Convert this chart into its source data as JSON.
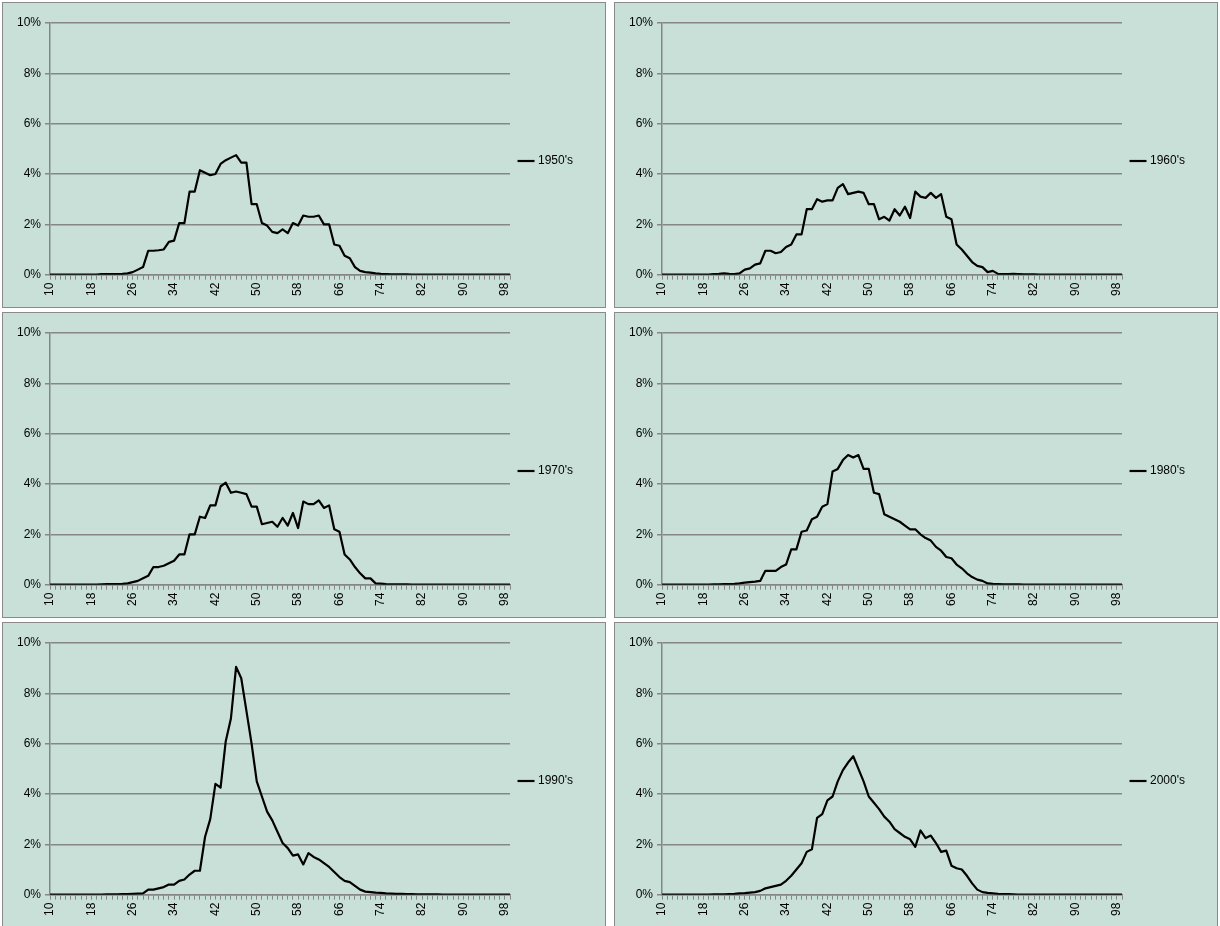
{
  "chart_data": [
    {
      "type": "line",
      "categories": [
        "10",
        null,
        null,
        null,
        null,
        null,
        null,
        null,
        "18",
        null,
        null,
        null,
        null,
        null,
        null,
        null,
        "26",
        null,
        null,
        null,
        null,
        null,
        null,
        null,
        "34",
        null,
        null,
        null,
        null,
        null,
        null,
        null,
        "42",
        null,
        null,
        null,
        null,
        null,
        null,
        null,
        "50",
        null,
        null,
        null,
        null,
        null,
        null,
        null,
        "58",
        null,
        null,
        null,
        null,
        null,
        null,
        null,
        "66",
        null,
        null,
        null,
        null,
        null,
        null,
        null,
        "74",
        null,
        null,
        null,
        null,
        null,
        null,
        null,
        "82",
        null,
        null,
        null,
        null,
        null,
        null,
        null,
        "90",
        null,
        null,
        null,
        null,
        null,
        null,
        null,
        "98",
        null
      ],
      "ylim": [
        0,
        10
      ],
      "yticks": [
        {
          "value": 0,
          "label": "0%"
        },
        {
          "value": 2,
          "label": "2%"
        },
        {
          "value": 4,
          "label": "4%"
        },
        {
          "value": 6,
          "label": "6%"
        },
        {
          "value": 8,
          "label": "8%"
        },
        {
          "value": 10,
          "label": "10%"
        }
      ],
      "grid": "y",
      "legend": "right",
      "marker": "none",
      "series": [
        {
          "name": "1950's",
          "color": "#000000",
          "values": [
            0,
            0,
            0,
            0,
            0,
            0,
            0,
            0,
            0,
            0,
            0.02,
            0.02,
            0.02,
            0.02,
            0.03,
            0.05,
            0.1,
            0.2,
            0.3,
            0.95,
            0.95,
            0.97,
            1.0,
            1.3,
            1.35,
            2.05,
            2.05,
            3.3,
            3.3,
            4.15,
            4.05,
            3.95,
            4.0,
            4.4,
            4.55,
            4.65,
            4.75,
            4.45,
            4.45,
            2.8,
            2.8,
            2.05,
            1.95,
            1.7,
            1.65,
            1.8,
            1.65,
            2.05,
            1.95,
            2.35,
            2.3,
            2.3,
            2.35,
            2.0,
            2.0,
            1.2,
            1.15,
            0.75,
            0.65,
            0.3,
            0.15,
            0.1,
            0.08,
            0.05,
            0.03,
            0.02,
            0.01,
            0.01,
            0.01,
            0.01,
            0,
            0,
            0,
            0,
            0,
            0,
            0,
            0,
            0,
            0,
            0,
            0,
            0,
            0,
            0,
            0,
            0,
            0,
            0,
            0
          ]
        }
      ]
    },
    {
      "type": "line",
      "categories": [
        "10",
        null,
        null,
        null,
        null,
        null,
        null,
        null,
        "18",
        null,
        null,
        null,
        null,
        null,
        null,
        null,
        "26",
        null,
        null,
        null,
        null,
        null,
        null,
        null,
        "34",
        null,
        null,
        null,
        null,
        null,
        null,
        null,
        "42",
        null,
        null,
        null,
        null,
        null,
        null,
        null,
        "50",
        null,
        null,
        null,
        null,
        null,
        null,
        null,
        "58",
        null,
        null,
        null,
        null,
        null,
        null,
        null,
        "66",
        null,
        null,
        null,
        null,
        null,
        null,
        null,
        "74",
        null,
        null,
        null,
        null,
        null,
        null,
        null,
        "82",
        null,
        null,
        null,
        null,
        null,
        null,
        null,
        "90",
        null,
        null,
        null,
        null,
        null,
        null,
        null,
        "98",
        null
      ],
      "ylim": [
        0,
        10
      ],
      "yticks": [
        {
          "value": 0,
          "label": "0%"
        },
        {
          "value": 2,
          "label": "2%"
        },
        {
          "value": 4,
          "label": "4%"
        },
        {
          "value": 6,
          "label": "6%"
        },
        {
          "value": 8,
          "label": "8%"
        },
        {
          "value": 10,
          "label": "10%"
        }
      ],
      "grid": "y",
      "legend": "right",
      "marker": "none",
      "series": [
        {
          "name": "1960's",
          "color": "#000000",
          "values": [
            0,
            0,
            0,
            0,
            0,
            0,
            0,
            0,
            0,
            0,
            0.02,
            0.03,
            0.05,
            0.03,
            0.02,
            0.05,
            0.2,
            0.25,
            0.4,
            0.45,
            0.95,
            0.95,
            0.85,
            0.9,
            1.1,
            1.2,
            1.6,
            1.6,
            2.6,
            2.6,
            3.0,
            2.9,
            2.95,
            2.95,
            3.45,
            3.6,
            3.2,
            3.25,
            3.3,
            3.25,
            2.8,
            2.8,
            2.2,
            2.3,
            2.15,
            2.6,
            2.35,
            2.7,
            2.25,
            3.3,
            3.1,
            3.05,
            3.25,
            3.05,
            3.2,
            2.3,
            2.2,
            1.2,
            1.0,
            0.75,
            0.5,
            0.35,
            0.3,
            0.1,
            0.15,
            0.03,
            0.02,
            0.02,
            0.03,
            0.02,
            0.01,
            0.01,
            0.01,
            0,
            0,
            0,
            0,
            0,
            0,
            0,
            0,
            0,
            0,
            0,
            0,
            0,
            0,
            0,
            0,
            0
          ]
        }
      ]
    },
    {
      "type": "line",
      "categories": [
        "10",
        null,
        null,
        null,
        null,
        null,
        null,
        null,
        "18",
        null,
        null,
        null,
        null,
        null,
        null,
        null,
        "26",
        null,
        null,
        null,
        null,
        null,
        null,
        null,
        "34",
        null,
        null,
        null,
        null,
        null,
        null,
        null,
        "42",
        null,
        null,
        null,
        null,
        null,
        null,
        null,
        "50",
        null,
        null,
        null,
        null,
        null,
        null,
        null,
        "58",
        null,
        null,
        null,
        null,
        null,
        null,
        null,
        "66",
        null,
        null,
        null,
        null,
        null,
        null,
        null,
        "74",
        null,
        null,
        null,
        null,
        null,
        null,
        null,
        "82",
        null,
        null,
        null,
        null,
        null,
        null,
        null,
        "90",
        null,
        null,
        null,
        null,
        null,
        null,
        null,
        "98",
        null
      ],
      "ylim": [
        0,
        10
      ],
      "yticks": [
        {
          "value": 0,
          "label": "0%"
        },
        {
          "value": 2,
          "label": "2%"
        },
        {
          "value": 4,
          "label": "4%"
        },
        {
          "value": 6,
          "label": "6%"
        },
        {
          "value": 8,
          "label": "8%"
        },
        {
          "value": 10,
          "label": "10%"
        }
      ],
      "grid": "y",
      "legend": "right",
      "marker": "none",
      "series": [
        {
          "name": "1970's",
          "color": "#000000",
          "values": [
            0,
            0,
            0,
            0,
            0,
            0,
            0,
            0,
            0,
            0,
            0.01,
            0.02,
            0.02,
            0.02,
            0.03,
            0.05,
            0.1,
            0.15,
            0.25,
            0.35,
            0.7,
            0.7,
            0.75,
            0.85,
            0.95,
            1.2,
            1.2,
            2.0,
            2.0,
            2.7,
            2.65,
            3.15,
            3.15,
            3.9,
            4.05,
            3.65,
            3.7,
            3.65,
            3.6,
            3.1,
            3.1,
            2.4,
            2.45,
            2.5,
            2.3,
            2.65,
            2.35,
            2.85,
            2.25,
            3.3,
            3.2,
            3.2,
            3.35,
            3.05,
            3.15,
            2.2,
            2.1,
            1.2,
            1.0,
            0.7,
            0.45,
            0.25,
            0.25,
            0.05,
            0.04,
            0.02,
            0.01,
            0.01,
            0.01,
            0.01,
            0,
            0,
            0,
            0,
            0,
            0,
            0,
            0,
            0,
            0,
            0,
            0,
            0,
            0,
            0,
            0,
            0,
            0,
            0,
            0
          ]
        }
      ]
    },
    {
      "type": "line",
      "categories": [
        "10",
        null,
        null,
        null,
        null,
        null,
        null,
        null,
        "18",
        null,
        null,
        null,
        null,
        null,
        null,
        null,
        "26",
        null,
        null,
        null,
        null,
        null,
        null,
        null,
        "34",
        null,
        null,
        null,
        null,
        null,
        null,
        null,
        "42",
        null,
        null,
        null,
        null,
        null,
        null,
        null,
        "50",
        null,
        null,
        null,
        null,
        null,
        null,
        null,
        "58",
        null,
        null,
        null,
        null,
        null,
        null,
        null,
        "66",
        null,
        null,
        null,
        null,
        null,
        null,
        null,
        "74",
        null,
        null,
        null,
        null,
        null,
        null,
        null,
        "82",
        null,
        null,
        null,
        null,
        null,
        null,
        null,
        "90",
        null,
        null,
        null,
        null,
        null,
        null,
        null,
        "98",
        null
      ],
      "ylim": [
        0,
        10
      ],
      "yticks": [
        {
          "value": 0,
          "label": "0%"
        },
        {
          "value": 2,
          "label": "2%"
        },
        {
          "value": 4,
          "label": "4%"
        },
        {
          "value": 6,
          "label": "6%"
        },
        {
          "value": 8,
          "label": "8%"
        },
        {
          "value": 10,
          "label": "10%"
        }
      ],
      "grid": "y",
      "legend": "right",
      "marker": "none",
      "series": [
        {
          "name": "1980's",
          "color": "#000000",
          "values": [
            0,
            0,
            0,
            0,
            0,
            0,
            0,
            0,
            0,
            0,
            0.01,
            0.01,
            0.02,
            0.02,
            0.03,
            0.05,
            0.08,
            0.1,
            0.12,
            0.15,
            0.55,
            0.55,
            0.55,
            0.7,
            0.8,
            1.4,
            1.4,
            2.1,
            2.15,
            2.6,
            2.7,
            3.1,
            3.2,
            4.5,
            4.6,
            4.95,
            5.15,
            5.05,
            5.15,
            4.6,
            4.6,
            3.65,
            3.6,
            2.8,
            2.7,
            2.6,
            2.5,
            2.35,
            2.2,
            2.2,
            2.0,
            1.85,
            1.75,
            1.5,
            1.35,
            1.1,
            1.05,
            0.8,
            0.65,
            0.45,
            0.3,
            0.2,
            0.15,
            0.05,
            0.03,
            0.02,
            0.01,
            0.01,
            0.01,
            0.01,
            0,
            0,
            0,
            0,
            0,
            0,
            0,
            0,
            0,
            0,
            0,
            0,
            0,
            0,
            0,
            0,
            0,
            0,
            0,
            0
          ]
        }
      ]
    },
    {
      "type": "line",
      "categories": [
        "10",
        null,
        null,
        null,
        null,
        null,
        null,
        null,
        "18",
        null,
        null,
        null,
        null,
        null,
        null,
        null,
        "26",
        null,
        null,
        null,
        null,
        null,
        null,
        null,
        "34",
        null,
        null,
        null,
        null,
        null,
        null,
        null,
        "42",
        null,
        null,
        null,
        null,
        null,
        null,
        null,
        "50",
        null,
        null,
        null,
        null,
        null,
        null,
        null,
        "58",
        null,
        null,
        null,
        null,
        null,
        null,
        null,
        "66",
        null,
        null,
        null,
        null,
        null,
        null,
        null,
        "74",
        null,
        null,
        null,
        null,
        null,
        null,
        null,
        "82",
        null,
        null,
        null,
        null,
        null,
        null,
        null,
        "90",
        null,
        null,
        null,
        null,
        null,
        null,
        null,
        "98",
        null
      ],
      "ylim": [
        0,
        10
      ],
      "yticks": [
        {
          "value": 0,
          "label": "0%"
        },
        {
          "value": 2,
          "label": "2%"
        },
        {
          "value": 4,
          "label": "4%"
        },
        {
          "value": 6,
          "label": "6%"
        },
        {
          "value": 8,
          "label": "8%"
        },
        {
          "value": 10,
          "label": "10%"
        }
      ],
      "grid": "y",
      "legend": "right",
      "marker": "none",
      "series": [
        {
          "name": "1990's",
          "color": "#000000",
          "values": [
            0,
            0,
            0,
            0,
            0,
            0,
            0,
            0,
            0,
            0,
            0,
            0.01,
            0.01,
            0.01,
            0.02,
            0.02,
            0.03,
            0.04,
            0.05,
            0.2,
            0.2,
            0.25,
            0.3,
            0.4,
            0.4,
            0.55,
            0.6,
            0.8,
            0.95,
            0.95,
            2.3,
            3.0,
            4.4,
            4.25,
            6.1,
            7.0,
            9.05,
            8.6,
            7.3,
            6.0,
            4.5,
            3.9,
            3.3,
            2.95,
            2.5,
            2.05,
            1.85,
            1.55,
            1.6,
            1.2,
            1.65,
            1.5,
            1.4,
            1.25,
            1.1,
            0.9,
            0.7,
            0.55,
            0.5,
            0.35,
            0.2,
            0.12,
            0.1,
            0.08,
            0.07,
            0.05,
            0.04,
            0.03,
            0.03,
            0.02,
            0.02,
            0.01,
            0.01,
            0.01,
            0.01,
            0.01,
            0,
            0,
            0,
            0,
            0,
            0,
            0,
            0,
            0,
            0,
            0,
            0,
            0,
            0
          ]
        }
      ]
    },
    {
      "type": "line",
      "categories": [
        "10",
        null,
        null,
        null,
        null,
        null,
        null,
        null,
        "18",
        null,
        null,
        null,
        null,
        null,
        null,
        null,
        "26",
        null,
        null,
        null,
        null,
        null,
        null,
        null,
        "34",
        null,
        null,
        null,
        null,
        null,
        null,
        null,
        "42",
        null,
        null,
        null,
        null,
        null,
        null,
        null,
        "50",
        null,
        null,
        null,
        null,
        null,
        null,
        null,
        "58",
        null,
        null,
        null,
        null,
        null,
        null,
        null,
        "66",
        null,
        null,
        null,
        null,
        null,
        null,
        null,
        "74",
        null,
        null,
        null,
        null,
        null,
        null,
        null,
        "82",
        null,
        null,
        null,
        null,
        null,
        null,
        null,
        "90",
        null,
        null,
        null,
        null,
        null,
        null,
        null,
        "98",
        null
      ],
      "ylim": [
        0,
        10
      ],
      "yticks": [
        {
          "value": 0,
          "label": "0%"
        },
        {
          "value": 2,
          "label": "2%"
        },
        {
          "value": 4,
          "label": "4%"
        },
        {
          "value": 6,
          "label": "6%"
        },
        {
          "value": 8,
          "label": "8%"
        },
        {
          "value": 10,
          "label": "10%"
        }
      ],
      "grid": "y",
      "legend": "right",
      "marker": "none",
      "series": [
        {
          "name": "2000's",
          "color": "#000000",
          "values": [
            0,
            0,
            0,
            0,
            0,
            0,
            0,
            0,
            0,
            0,
            0.01,
            0.01,
            0.01,
            0.02,
            0.03,
            0.05,
            0.06,
            0.08,
            0.1,
            0.15,
            0.25,
            0.3,
            0.35,
            0.4,
            0.55,
            0.75,
            1.0,
            1.25,
            1.7,
            1.8,
            3.05,
            3.2,
            3.75,
            3.9,
            4.5,
            4.95,
            5.25,
            5.5,
            5.0,
            4.5,
            3.9,
            3.65,
            3.4,
            3.1,
            2.9,
            2.6,
            2.45,
            2.3,
            2.2,
            1.9,
            2.55,
            2.25,
            2.35,
            2.05,
            1.7,
            1.75,
            1.15,
            1.05,
            1.0,
            0.75,
            0.45,
            0.2,
            0.1,
            0.07,
            0.05,
            0.03,
            0.02,
            0.02,
            0.01,
            0,
            0,
            0,
            0,
            0,
            0,
            0,
            0,
            0,
            0,
            0,
            0,
            0,
            0,
            0,
            0,
            0,
            0,
            0,
            0,
            0
          ]
        }
      ]
    }
  ]
}
